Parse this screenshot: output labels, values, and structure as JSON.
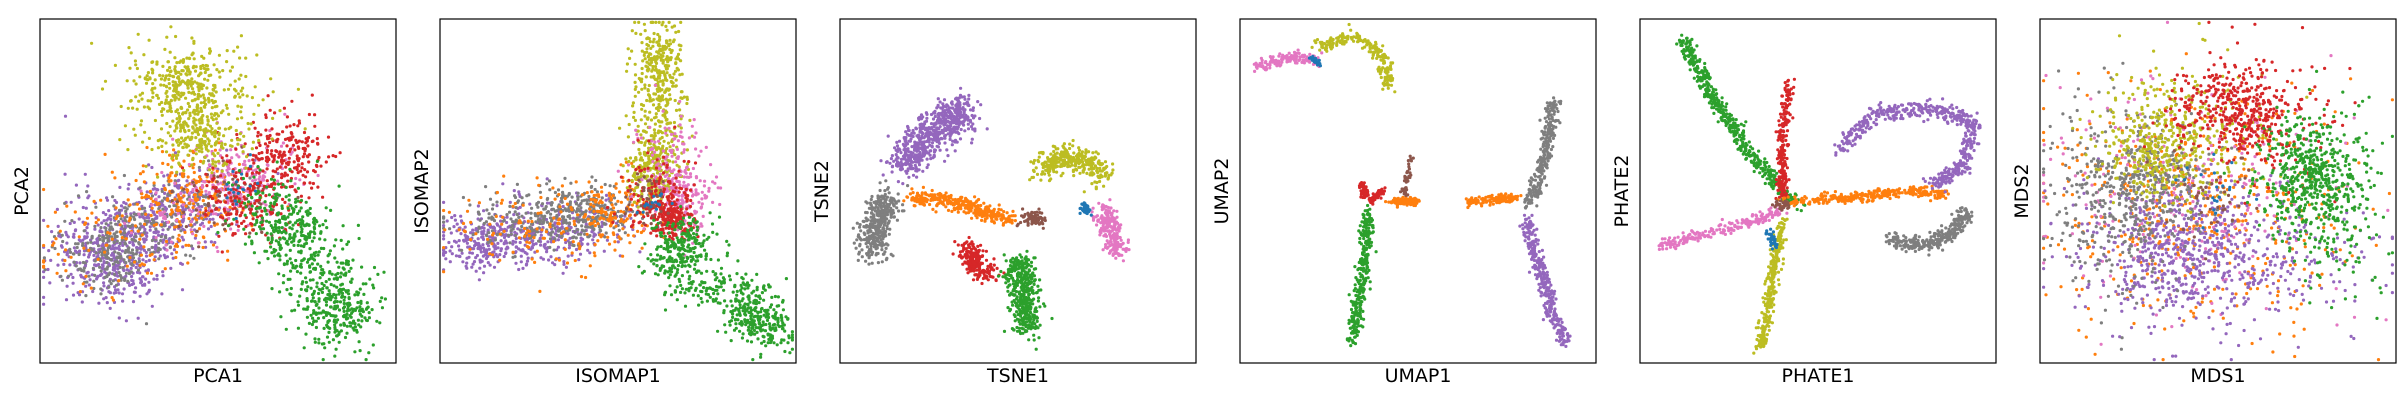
{
  "palette": {
    "blue": "#1f77b4",
    "orange": "#ff7f0e",
    "green": "#2ca02c",
    "red": "#d62728",
    "purple": "#9467bd",
    "brown": "#8c564b",
    "pink": "#e377c2",
    "gray": "#7f7f7f",
    "olive": "#bcbd22"
  },
  "chart_data": [
    {
      "type": "scatter",
      "xlabel": "PCA1",
      "ylabel": "PCA2",
      "xlim": [
        0,
        100
      ],
      "ylim": [
        0,
        100
      ],
      "grid": false,
      "ticks": false,
      "clusters": [
        {
          "color": "purple",
          "pts": [
            [
              28,
              62,
              14,
              8,
              -0.55
            ],
            [
              18,
              66,
              7,
              9,
              0
            ],
            [
              38,
              54,
              8,
              6,
              -0.4
            ],
            [
              22,
              72,
              6,
              5,
              0
            ]
          ],
          "n": 700
        },
        {
          "color": "gray",
          "pts": [
            [
              32,
              58,
              12,
              7,
              -0.5
            ],
            [
              20,
              68,
              6,
              6,
              0
            ]
          ],
          "n": 350
        },
        {
          "color": "orange",
          "pts": [
            [
              30,
              60,
              16,
              10,
              -0.5
            ],
            [
              44,
              52,
              8,
              6,
              0
            ]
          ],
          "n": 300
        },
        {
          "color": "pink",
          "pts": [
            [
              48,
              52,
              10,
              7,
              -0.4
            ],
            [
              58,
              46,
              7,
              6,
              0
            ]
          ],
          "n": 260
        },
        {
          "color": "brown",
          "pts": [
            [
              52,
              52,
              8,
              6,
              0
            ]
          ],
          "n": 60
        },
        {
          "color": "red",
          "pts": [
            [
              64,
              45,
              8,
              7,
              0
            ],
            [
              70,
              38,
              5,
              6,
              0
            ],
            [
              58,
              54,
              6,
              5,
              0
            ]
          ],
          "n": 380
        },
        {
          "color": "olive",
          "pts": [
            [
              44,
              24,
              11,
              8,
              0.15
            ],
            [
              40,
              18,
              7,
              5,
              0
            ],
            [
              44,
              34,
              7,
              5,
              0
            ]
          ],
          "n": 600
        },
        {
          "color": "green",
          "pts": [
            [
              77,
              72,
              8,
              9,
              0.35
            ],
            [
              68,
              58,
              6,
              6,
              0.3
            ],
            [
              84,
              84,
              5,
              5,
              0
            ]
          ],
          "n": 650
        },
        {
          "color": "blue",
          "pts": [
            [
              56,
              50,
              3,
              3,
              0
            ]
          ],
          "n": 20
        }
      ]
    },
    {
      "type": "scatter",
      "xlabel": "ISOMAP1",
      "ylabel": "ISOMAP2",
      "xlim": [
        0,
        100
      ],
      "ylim": [
        0,
        100
      ],
      "grid": false,
      "ticks": false,
      "clusters": [
        {
          "color": "purple",
          "pts": [
            [
              22,
              63,
              12,
              5,
              -0.2
            ],
            [
              35,
              62,
              10,
              5,
              -0.2
            ],
            [
              12,
              65,
              6,
              4,
              0
            ]
          ],
          "n": 500
        },
        {
          "color": "gray",
          "pts": [
            [
              28,
              58,
              12,
              4,
              -0.15
            ],
            [
              40,
              56,
              7,
              4,
              0
            ]
          ],
          "n": 420
        },
        {
          "color": "orange",
          "pts": [
            [
              30,
              61,
              14,
              6,
              -0.2
            ],
            [
              50,
              56,
              6,
              5,
              0
            ]
          ],
          "n": 260
        },
        {
          "color": "olive",
          "pts": [
            [
              61,
              30,
              4,
              11,
              0.05
            ],
            [
              62,
              13,
              3,
              7,
              0
            ],
            [
              60,
              44,
              3,
              6,
              0
            ]
          ],
          "n": 650
        },
        {
          "color": "pink",
          "pts": [
            [
              64,
              44,
              5,
              7,
              0
            ],
            [
              68,
              54,
              4,
              5,
              0
            ]
          ],
          "n": 280
        },
        {
          "color": "red",
          "pts": [
            [
              61,
              52,
              5,
              6,
              0
            ],
            [
              66,
              58,
              3,
              3,
              0
            ]
          ],
          "n": 320
        },
        {
          "color": "brown",
          "pts": [
            [
              58,
              52,
              3,
              4,
              0
            ]
          ],
          "n": 40
        },
        {
          "color": "green",
          "pts": [
            [
              78,
              78,
              10,
              5,
              0.55
            ],
            [
              90,
              88,
              5,
              4,
              0.4
            ],
            [
              68,
              66,
              4,
              4,
              0
            ]
          ],
          "n": 620
        },
        {
          "color": "blue",
          "pts": [
            [
              60,
              54,
              2,
              2,
              0
            ]
          ],
          "n": 15
        }
      ]
    },
    {
      "type": "scatter",
      "xlabel": "TSNE1",
      "ylabel": "TSNE2",
      "xlim": [
        0,
        100
      ],
      "ylim": [
        0,
        100
      ],
      "grid": false,
      "ticks": false,
      "curves": [
        {
          "color": "purple",
          "path": [
            [
              36,
              26
            ],
            [
              30,
              30
            ],
            [
              24,
              35
            ],
            [
              18,
              42
            ]
          ],
          "w": 5,
          "n": 620
        },
        {
          "color": "gray",
          "path": [
            [
              14,
              52
            ],
            [
              10,
              60
            ],
            [
              9,
              68
            ]
          ],
          "w": 4,
          "n": 380
        },
        {
          "color": "orange",
          "path": [
            [
              20,
              52
            ],
            [
              30,
              53
            ],
            [
              40,
              56
            ],
            [
              48,
              58
            ]
          ],
          "w": 2.2,
          "n": 320
        },
        {
          "color": "olive",
          "path": [
            [
              56,
              44
            ],
            [
              62,
              40
            ],
            [
              70,
              42
            ],
            [
              74,
              46
            ]
          ],
          "w": 3.5,
          "n": 330
        },
        {
          "color": "pink",
          "path": [
            [
              74,
              56
            ],
            [
              76,
              62
            ],
            [
              78,
              68
            ]
          ],
          "w": 3,
          "n": 220
        },
        {
          "color": "red",
          "path": [
            [
              36,
              66
            ],
            [
              38,
              72
            ],
            [
              42,
              74
            ]
          ],
          "w": 3.2,
          "n": 200
        },
        {
          "color": "green",
          "path": [
            [
              50,
              70
            ],
            [
              52,
              80
            ],
            [
              52,
              90
            ]
          ],
          "w": 4,
          "n": 420
        },
        {
          "color": "brown",
          "path": [
            [
              52,
              58
            ],
            [
              56,
              58
            ]
          ],
          "w": 2,
          "n": 80
        },
        {
          "color": "blue",
          "path": [
            [
              68,
              54
            ],
            [
              70,
              56
            ]
          ],
          "w": 1.2,
          "n": 40
        }
      ]
    },
    {
      "type": "scatter",
      "xlabel": "UMAP1",
      "ylabel": "UMAP2",
      "xlim": [
        0,
        100
      ],
      "ylim": [
        0,
        100
      ],
      "grid": false,
      "ticks": false,
      "curves": [
        {
          "color": "pink",
          "path": [
            [
              4,
              14
            ],
            [
              14,
              11
            ],
            [
              22,
              12
            ]
          ],
          "w": 1.5,
          "n": 140
        },
        {
          "color": "olive",
          "path": [
            [
              22,
              8
            ],
            [
              32,
              5
            ],
            [
              40,
              10
            ],
            [
              42,
              20
            ]
          ],
          "w": 1.8,
          "n": 200
        },
        {
          "color": "blue",
          "path": [
            [
              20,
              11
            ],
            [
              22,
              13
            ]
          ],
          "w": 0.8,
          "n": 25
        },
        {
          "color": "green",
          "path": [
            [
              36,
              56
            ],
            [
              35,
              70
            ],
            [
              33,
              84
            ],
            [
              31,
              94
            ]
          ],
          "w": 1.8,
          "n": 300
        },
        {
          "color": "red",
          "path": [
            [
              34,
              48
            ],
            [
              36,
              53
            ],
            [
              40,
              50
            ]
          ],
          "w": 1.2,
          "n": 90
        },
        {
          "color": "brown",
          "path": [
            [
              48,
              40
            ],
            [
              46,
              52
            ]
          ],
          "w": 0.8,
          "n": 40
        },
        {
          "color": "orange",
          "path": [
            [
              42,
              53
            ],
            [
              50,
              53
            ]
          ],
          "w": 1.0,
          "n": 120
        },
        {
          "color": "orange",
          "path": [
            [
              64,
              53
            ],
            [
              78,
              52
            ]
          ],
          "w": 1.1,
          "n": 140
        },
        {
          "color": "gray",
          "path": [
            [
              88,
              24
            ],
            [
              86,
              36
            ],
            [
              84,
              48
            ],
            [
              80,
              54
            ]
          ],
          "w": 1.8,
          "n": 260
        },
        {
          "color": "purple",
          "path": [
            [
              80,
              58
            ],
            [
              84,
              72
            ],
            [
              88,
              86
            ],
            [
              92,
              94
            ]
          ],
          "w": 1.8,
          "n": 300
        }
      ]
    },
    {
      "type": "scatter",
      "xlabel": "PHATE1",
      "ylabel": "PHATE2",
      "xlim": [
        0,
        100
      ],
      "ylim": [
        0,
        100
      ],
      "grid": false,
      "ticks": false,
      "curves": [
        {
          "color": "green",
          "path": [
            [
              12,
              6
            ],
            [
              20,
              22
            ],
            [
              30,
              38
            ],
            [
              40,
              50
            ],
            [
              44,
              54
            ]
          ],
          "w": 2,
          "n": 480
        },
        {
          "color": "red",
          "path": [
            [
              42,
              18
            ],
            [
              40,
              34
            ],
            [
              40,
              52
            ]
          ],
          "w": 1.4,
          "n": 220
        },
        {
          "color": "orange",
          "path": [
            [
              40,
              53
            ],
            [
              58,
              52
            ],
            [
              76,
              50
            ],
            [
              86,
              51
            ]
          ],
          "w": 1.4,
          "n": 320
        },
        {
          "color": "purple",
          "path": [
            [
              56,
              38
            ],
            [
              66,
              28
            ],
            [
              82,
              26
            ],
            [
              94,
              30
            ],
            [
              90,
              44
            ],
            [
              82,
              48
            ]
          ],
          "w": 2.2,
          "n": 480
        },
        {
          "color": "gray",
          "path": [
            [
              70,
              64
            ],
            [
              80,
              66
            ],
            [
              88,
              62
            ],
            [
              92,
              56
            ]
          ],
          "w": 2,
          "n": 300
        },
        {
          "color": "pink",
          "path": [
            [
              6,
              66
            ],
            [
              20,
              62
            ],
            [
              34,
              58
            ],
            [
              40,
              55
            ]
          ],
          "w": 1.6,
          "n": 220
        },
        {
          "color": "olive",
          "path": [
            [
              40,
              58
            ],
            [
              38,
              70
            ],
            [
              36,
              84
            ],
            [
              34,
              96
            ]
          ],
          "w": 1.5,
          "n": 280
        },
        {
          "color": "blue",
          "path": [
            [
              36,
              62
            ],
            [
              38,
              66
            ]
          ],
          "w": 1.2,
          "n": 35
        },
        {
          "color": "brown",
          "path": [
            [
              38,
              54
            ],
            [
              42,
              54
            ]
          ],
          "w": 1,
          "n": 30
        }
      ]
    },
    {
      "type": "scatter",
      "xlabel": "MDS1",
      "ylabel": "MDS2",
      "xlim": [
        0,
        100
      ],
      "ylim": [
        0,
        100
      ],
      "grid": false,
      "ticks": false,
      "clusters": [
        {
          "color": "orange",
          "pts": [
            [
              45,
              55,
              22,
              18,
              0
            ]
          ],
          "n": 500
        },
        {
          "color": "pink",
          "pts": [
            [
              42,
              52,
              20,
              17,
              0
            ]
          ],
          "n": 250
        },
        {
          "color": "purple",
          "pts": [
            [
              52,
              70,
              20,
              10,
              0
            ],
            [
              38,
              66,
              12,
              10,
              0
            ]
          ],
          "n": 750
        },
        {
          "color": "gray",
          "pts": [
            [
              22,
              52,
              10,
              14,
              0
            ],
            [
              30,
              46,
              10,
              8,
              0
            ]
          ],
          "n": 550
        },
        {
          "color": "olive",
          "pts": [
            [
              42,
              32,
              12,
              10,
              0
            ],
            [
              32,
              38,
              8,
              7,
              0
            ]
          ],
          "n": 450
        },
        {
          "color": "red",
          "pts": [
            [
              62,
              28,
              10,
              9,
              0
            ],
            [
              52,
              26,
              8,
              6,
              0
            ]
          ],
          "n": 480
        },
        {
          "color": "green",
          "pts": [
            [
              80,
              52,
              8,
              13,
              0
            ],
            [
              74,
              44,
              6,
              7,
              0
            ]
          ],
          "n": 620
        },
        {
          "color": "brown",
          "pts": [
            [
              50,
              50,
              6,
              6,
              0
            ]
          ],
          "n": 40
        },
        {
          "color": "blue",
          "pts": [
            [
              50,
              50,
              6,
              6,
              0
            ]
          ],
          "n": 20
        }
      ]
    }
  ]
}
